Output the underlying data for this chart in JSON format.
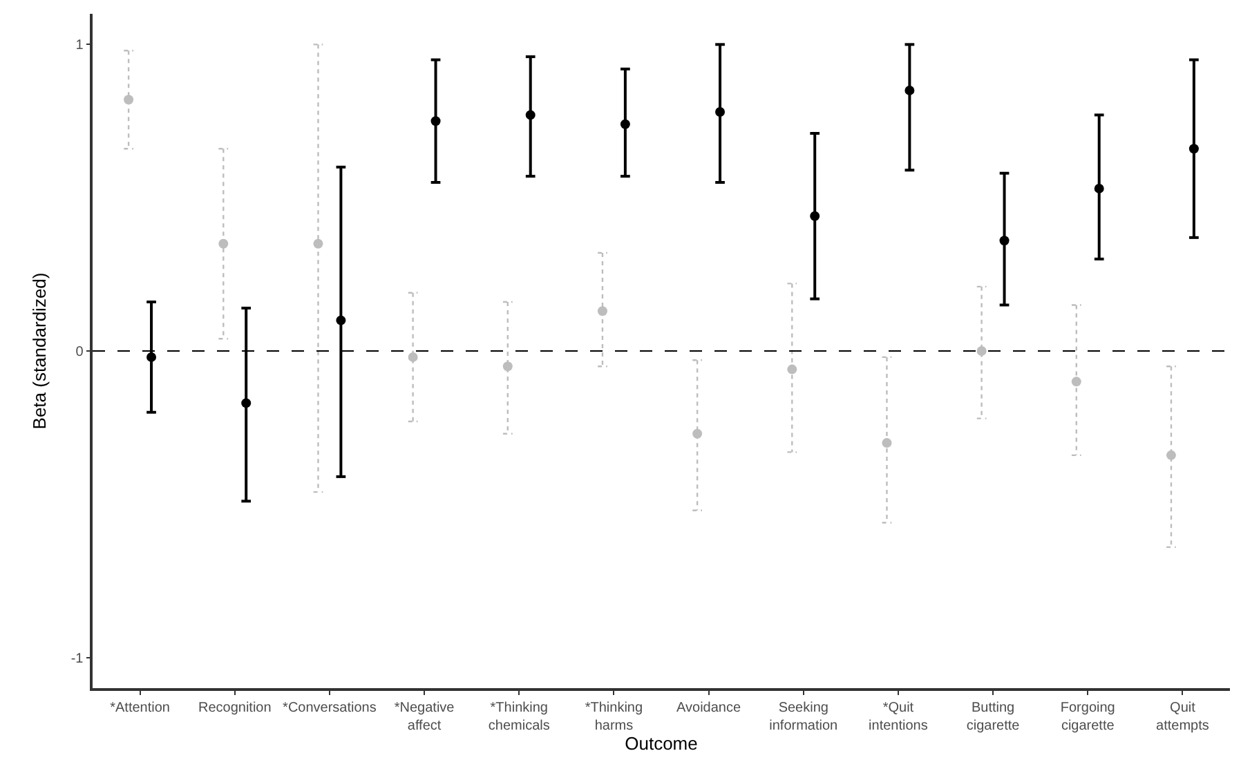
{
  "chart_data": {
    "type": "scatter",
    "xlabel": "Outcome",
    "ylabel": "Beta (standardized)",
    "categories": [
      "*Attention",
      "Recognition",
      "*Conversations",
      "*Negative affect",
      "*Thinking chemicals",
      "*Thinking harms",
      "Avoidance",
      "Seeking information",
      "*Quit intentions",
      "Butting cigarette",
      "Forgoing cigarette",
      "Quit attempts"
    ],
    "series": [
      {
        "color": "#bdbdbd",
        "line_style": "dotted",
        "values": [
          0.82,
          0.35,
          0.35,
          -0.02,
          -0.05,
          0.13,
          -0.27,
          -0.06,
          -0.3,
          0.0,
          -0.1,
          -0.34
        ],
        "errors": [
          [
            0.66,
            0.98
          ],
          [
            0.04,
            0.66
          ],
          [
            -0.46,
            1.0
          ],
          [
            -0.23,
            0.19
          ],
          [
            -0.27,
            0.16
          ],
          [
            -0.05,
            0.32
          ],
          [
            -0.52,
            -0.03
          ],
          [
            -0.33,
            0.22
          ],
          [
            -0.56,
            -0.02
          ],
          [
            -0.22,
            0.21
          ],
          [
            -0.34,
            0.15
          ],
          [
            -0.64,
            -0.05
          ]
        ]
      },
      {
        "color": "#000000",
        "line_style": "solid",
        "values": [
          -0.02,
          -0.17,
          0.1,
          0.75,
          0.77,
          0.74,
          0.78,
          0.44,
          0.85,
          0.36,
          0.53,
          0.66
        ],
        "errors": [
          [
            -0.2,
            0.16
          ],
          [
            -0.49,
            0.14
          ],
          [
            -0.41,
            0.6
          ],
          [
            0.55,
            0.95
          ],
          [
            0.57,
            0.96
          ],
          [
            0.57,
            0.92
          ],
          [
            0.55,
            1.0
          ],
          [
            0.17,
            0.71
          ],
          [
            0.59,
            1.0
          ],
          [
            0.15,
            0.58
          ],
          [
            0.3,
            0.77
          ],
          [
            0.37,
            0.95
          ]
        ]
      }
    ],
    "ref_lines": [
      {
        "axis": "y",
        "value": 0,
        "color": "#000000",
        "line_style": "dashed"
      }
    ],
    "ylim": [
      -1.1,
      1.1
    ],
    "yticks": [
      -1,
      0,
      1
    ],
    "marker": "circle"
  }
}
